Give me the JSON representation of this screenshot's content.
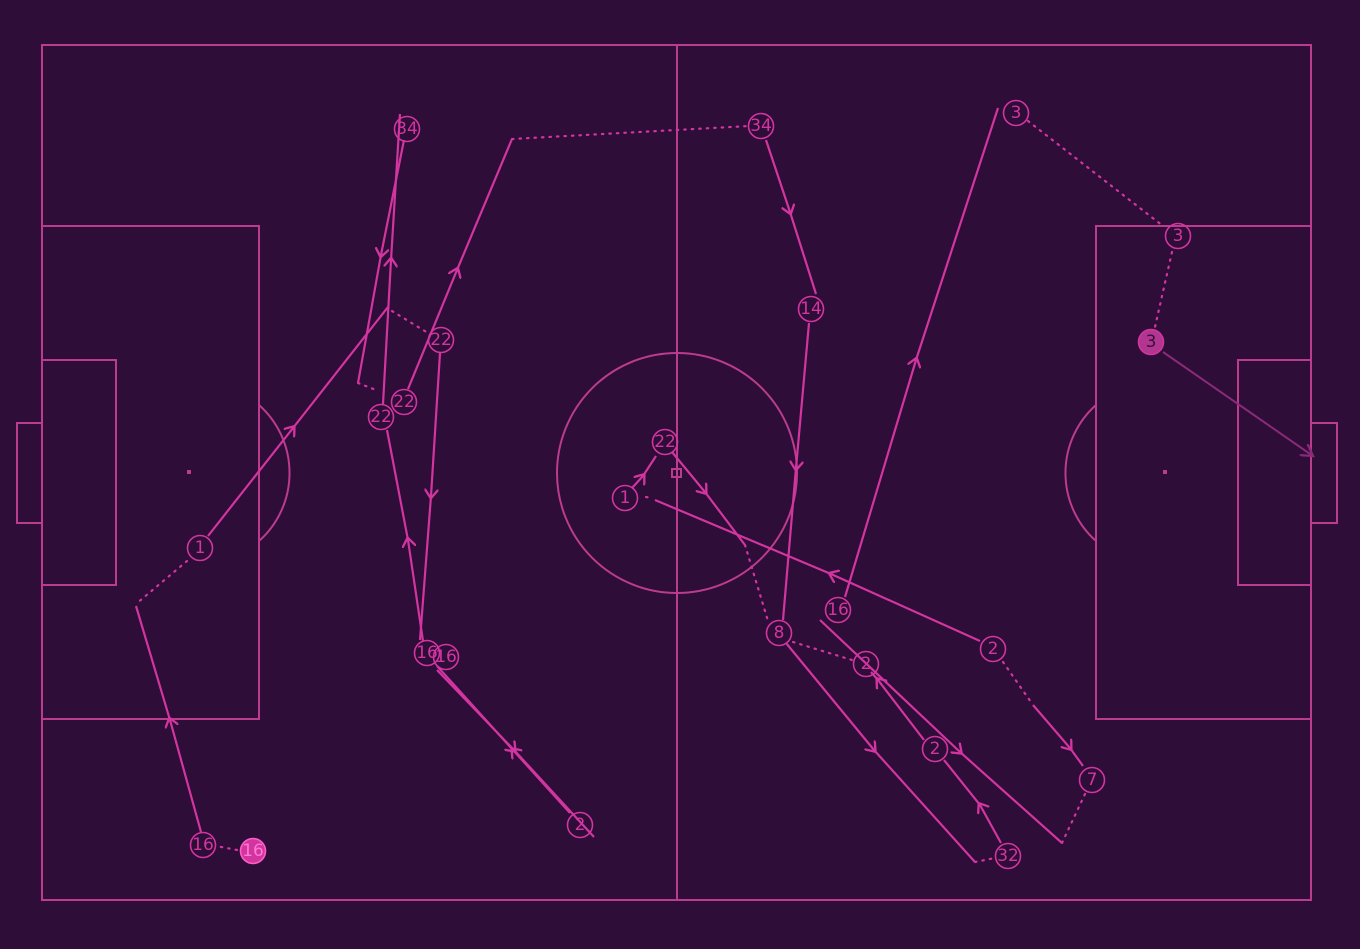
{
  "pitch": {
    "background": "#2e0d38",
    "line_color": "#bb3b8e",
    "event_color": "#d2359f"
  },
  "nodes": [
    {
      "label": "34"
    },
    {
      "label": "34"
    },
    {
      "label": "3"
    },
    {
      "label": "3"
    },
    {
      "label": "3"
    },
    {
      "label": "14"
    },
    {
      "label": "22"
    },
    {
      "label": "22"
    },
    {
      "label": "22"
    },
    {
      "label": "22"
    },
    {
      "label": "1"
    },
    {
      "label": "1"
    },
    {
      "label": "16"
    },
    {
      "label": "16"
    },
    {
      "label": "16"
    },
    {
      "label": "8"
    },
    {
      "label": "2"
    },
    {
      "label": "2"
    },
    {
      "label": "2"
    },
    {
      "label": "2"
    },
    {
      "label": "7"
    },
    {
      "label": "32"
    },
    {
      "label": "16"
    },
    {
      "label": "16"
    }
  ]
}
